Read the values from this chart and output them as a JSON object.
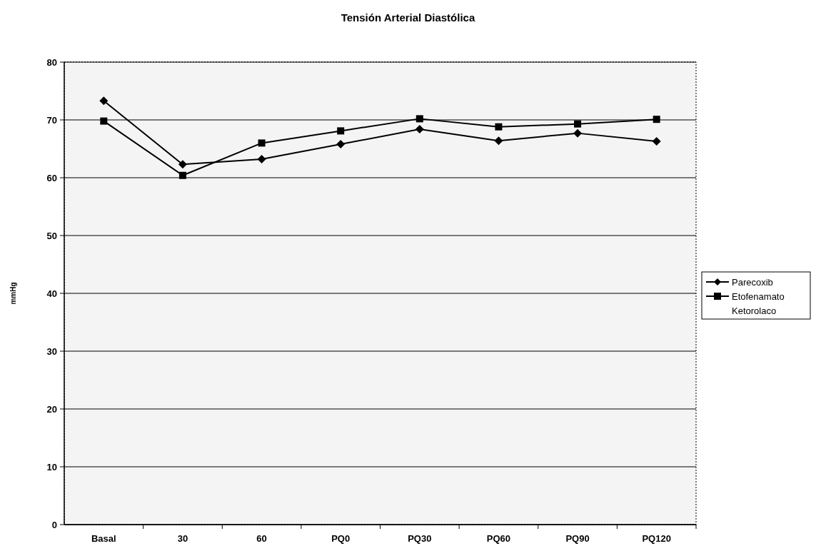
{
  "chart_data": {
    "type": "line",
    "title": "Tensión Arterial Diastólica",
    "ylabel": "mmHg",
    "categories": [
      "Basal",
      "30",
      "60",
      "PQ0",
      "PQ30",
      "PQ60",
      "PQ90",
      "PQ120"
    ],
    "series": [
      {
        "name": "Parecoxib",
        "color": "#000000",
        "marker": "diamond",
        "values": [
          73.3,
          62.3,
          63.2,
          65.8,
          68.4,
          66.4,
          67.7,
          66.3
        ]
      },
      {
        "name": "Etofenamato",
        "color": "#000000",
        "marker": "square",
        "values": [
          69.8,
          60.4,
          66.0,
          68.1,
          70.2,
          68.8,
          69.3,
          70.1
        ]
      },
      {
        "name": "Ketorolaco",
        "marker": "none",
        "values": [
          null,
          null,
          null,
          null,
          null,
          null,
          null,
          null
        ]
      }
    ],
    "ylim": [
      0,
      80
    ],
    "yticks": [
      0,
      10,
      20,
      30,
      40,
      50,
      60,
      70,
      80
    ],
    "grid": "y",
    "legend": "right",
    "line_style": "solid"
  }
}
